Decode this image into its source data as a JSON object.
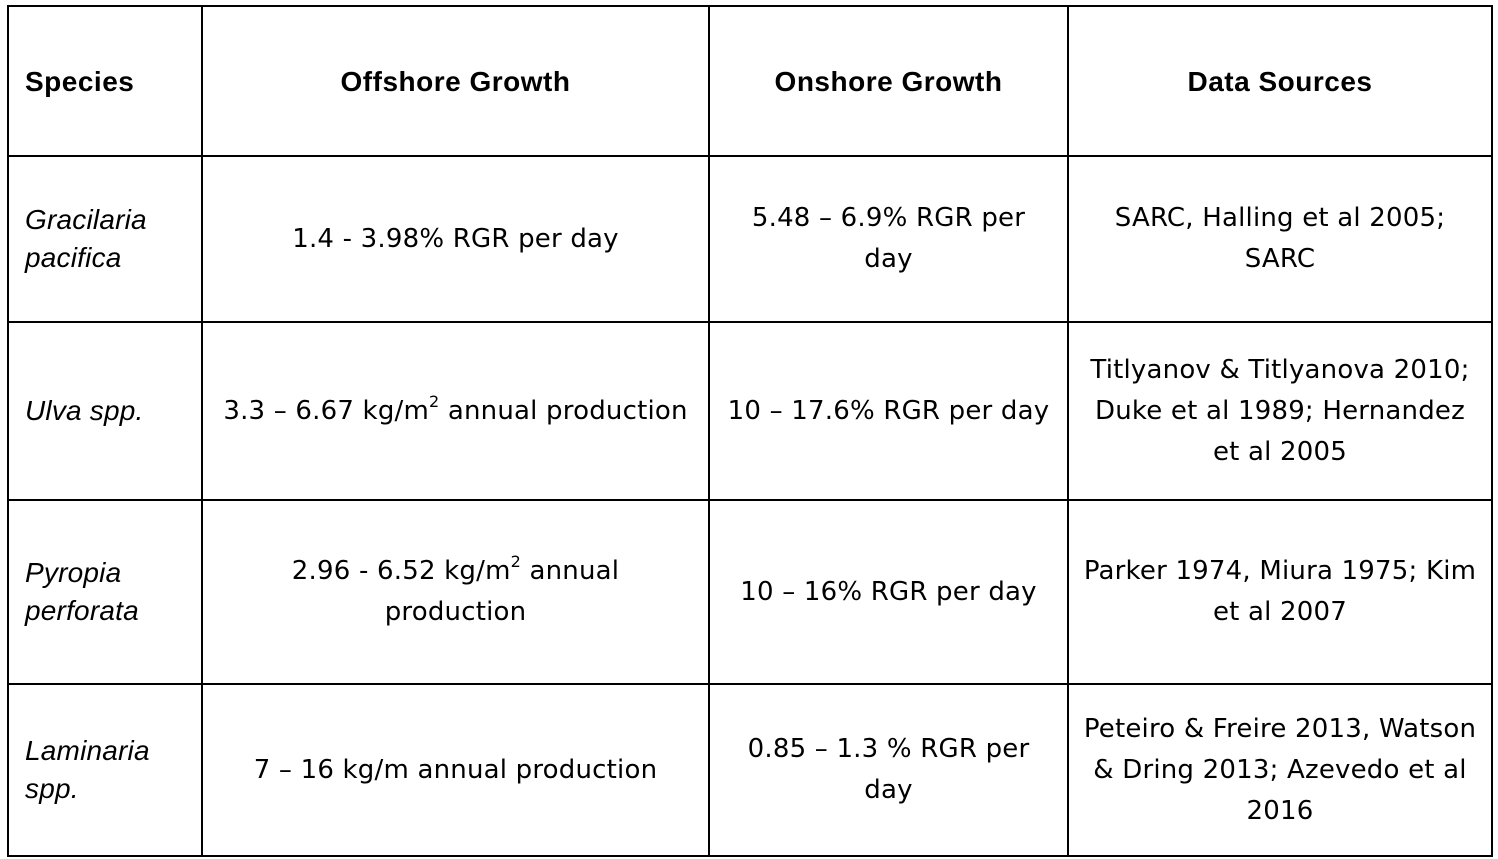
{
  "table": {
    "headers": [
      "Species",
      "Offshore Growth",
      "Onshore Growth",
      "Data Sources"
    ],
    "rows": [
      {
        "species_line1": "Gracilaria",
        "species_line2": "pacifica",
        "offshore_pre": "1.4 - 3.98% RGR per day",
        "offshore_sup": "",
        "offshore_post": "",
        "onshore": "5.48 – 6.9% RGR per day",
        "sources": "SARC, Halling et al 2005; SARC"
      },
      {
        "species_line1": "Ulva spp.",
        "species_line2": "",
        "offshore_pre": "3.3 – 6.67 kg/m",
        "offshore_sup": "2",
        "offshore_post": " annual production",
        "onshore": "10 – 17.6% RGR per day",
        "sources": "Titlyanov & Titlyanova 2010; Duke et al 1989; Hernandez et al 2005"
      },
      {
        "species_line1": "Pyropia",
        "species_line2": "perforata",
        "offshore_pre": "2.96 - 6.52 kg/m",
        "offshore_sup": "2",
        "offshore_post": " annual production",
        "onshore": "10 – 16% RGR per day",
        "sources": "Parker 1974, Miura 1975; Kim et al 2007"
      },
      {
        "species_line1": "Laminaria",
        "species_line2": "spp.",
        "offshore_pre": "7 – 16 kg/m annual production",
        "offshore_sup": "",
        "offshore_post": "",
        "onshore": "0.85 – 1.3 % RGR per day",
        "sources": "Peteiro & Freire 2013, Watson & Dring 2013; Azevedo et al 2016"
      }
    ]
  }
}
